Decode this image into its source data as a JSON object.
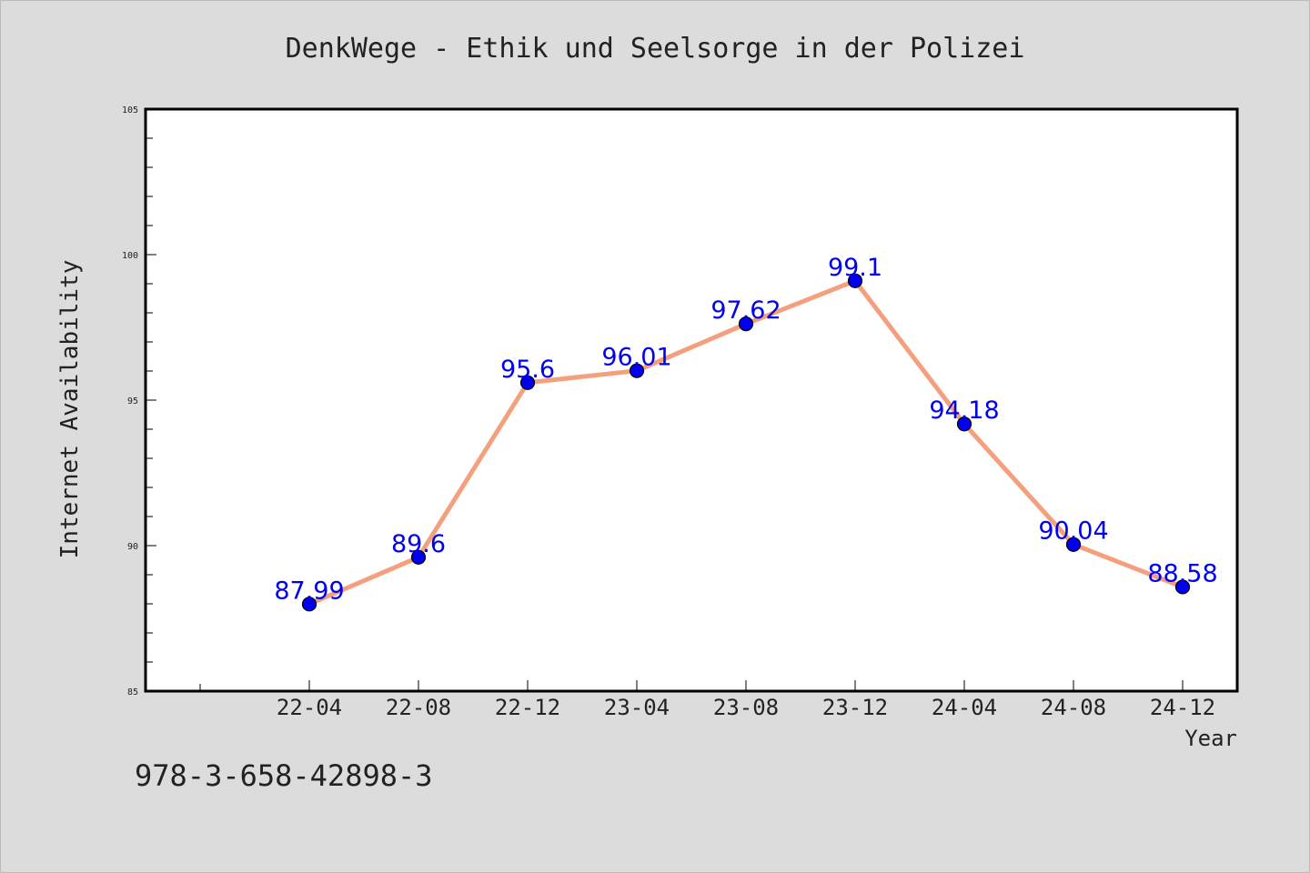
{
  "chart_data": {
    "type": "line",
    "title": "DenkWege - Ethik und Seelsorge in der Polizei",
    "xlabel": "Year",
    "ylabel": "Internet Availability",
    "categories": [
      "22-04",
      "22-08",
      "22-12",
      "23-04",
      "23-08",
      "23-12",
      "24-04",
      "24-08",
      "24-12"
    ],
    "series": [
      {
        "values": [
          87.99,
          89.6,
          95.6,
          96.01,
          97.62,
          99.1,
          94.18,
          90.04,
          88.58
        ]
      }
    ],
    "data_labels": [
      "87.99",
      "89.6",
      "95.6",
      "96.01",
      "97.62",
      "99.1",
      "94.18",
      "90.04",
      "88.58"
    ],
    "ylim": [
      85,
      105
    ],
    "yticks": [
      85,
      90,
      95,
      100,
      105
    ],
    "grid": false,
    "legend": "none",
    "colors": {
      "line": "#f4a07e",
      "marker": "#0000ee",
      "data_label": "#0000ee",
      "background": "#dcdcdc",
      "plot_area": "#ffffff"
    }
  },
  "footer": {
    "isbn": "978-3-658-42898-3"
  }
}
